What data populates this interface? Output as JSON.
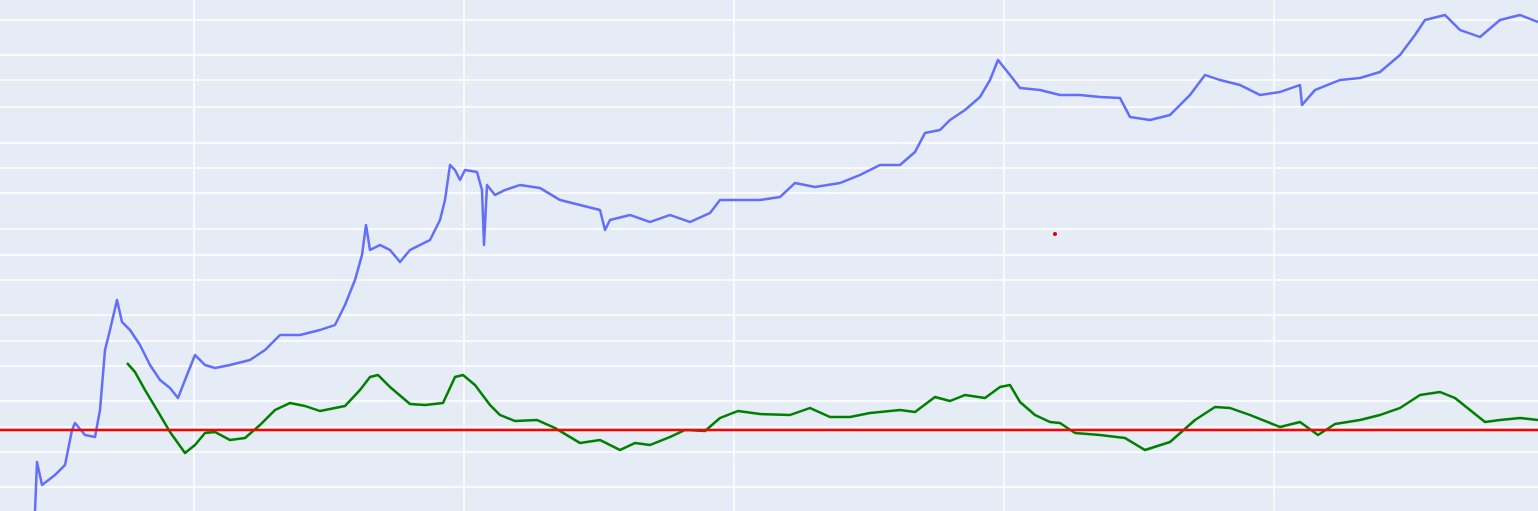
{
  "chart_data": {
    "type": "line",
    "xlim": [
      0,
      1538
    ],
    "ylim": [
      0,
      511
    ],
    "xticks": [
      194,
      464,
      734,
      1004,
      1274
    ],
    "yticks": [
      24,
      59,
      84,
      110,
      145,
      170,
      196,
      231,
      256,
      282,
      318,
      343,
      368,
      404,
      431,
      456,
      491
    ],
    "grid": true,
    "background": "#e5ecf6",
    "series": [
      {
        "color": "#636efa",
        "x": [
          35,
          37,
          42,
          55,
          65,
          72,
          75,
          85,
          95,
          100,
          105,
          110,
          117,
          122,
          130,
          140,
          150,
          160,
          170,
          178,
          185,
          195,
          205,
          215,
          230,
          250,
          265,
          280,
          300,
          320,
          335,
          345,
          355,
          362,
          366,
          370,
          380,
          390,
          400,
          410,
          430,
          440,
          445,
          450,
          455,
          460,
          465,
          477,
          482,
          484,
          487,
          495,
          505,
          520,
          540,
          560,
          580,
          600,
          605,
          610,
          630,
          650,
          670,
          690,
          710,
          720,
          740,
          760,
          780,
          795,
          815,
          840,
          860,
          880,
          900,
          915,
          925,
          940,
          950,
          965,
          980,
          990,
          998,
          1010,
          1020,
          1040,
          1060,
          1080,
          1100,
          1120,
          1130,
          1150,
          1170,
          1190,
          1205,
          1220,
          1240,
          1260,
          1280,
          1300,
          1302,
          1315,
          1340,
          1360,
          1380,
          1400,
          1415,
          1425,
          1445,
          1460,
          1480,
          1500,
          1520,
          1538
        ],
        "values": [
          0,
          49,
          26,
          36,
          46,
          81,
          88,
          76,
          74,
          101,
          161,
          181,
          211,
          189,
          181,
          166,
          146,
          131,
          123,
          113,
          131,
          156,
          146,
          143,
          146,
          151,
          161,
          176,
          176,
          181,
          186,
          206,
          231,
          256,
          286,
          261,
          266,
          261,
          249,
          261,
          271,
          291,
          311,
          346,
          341,
          331,
          341,
          339,
          321,
          266,
          326,
          316,
          321,
          326,
          323,
          311,
          306,
          301,
          281,
          291,
          296,
          289,
          296,
          289,
          298,
          311,
          311,
          311,
          314,
          328,
          324,
          328,
          336,
          346,
          346,
          359,
          378,
          381,
          391,
          401,
          414,
          431,
          451,
          436,
          423,
          421,
          416,
          416,
          414,
          413,
          394,
          391,
          396,
          416,
          436,
          431,
          426,
          416,
          419,
          426,
          406,
          421,
          431,
          433,
          439,
          456,
          476,
          491,
          496,
          481,
          474,
          491,
          496,
          489
        ]
      },
      {
        "color": "#008000",
        "x": [
          127,
          135,
          145,
          160,
          170,
          185,
          195,
          205,
          215,
          230,
          245,
          260,
          275,
          290,
          305,
          320,
          345,
          360,
          370,
          378,
          390,
          410,
          425,
          443,
          455,
          463,
          475,
          490,
          500,
          515,
          537,
          555,
          580,
          600,
          620,
          635,
          650,
          670,
          685,
          705,
          720,
          738,
          760,
          790,
          810,
          830,
          850,
          870,
          900,
          915,
          935,
          950,
          965,
          985,
          1000,
          1010,
          1020,
          1035,
          1050,
          1060,
          1075,
          1100,
          1125,
          1145,
          1170,
          1195,
          1215,
          1230,
          1250,
          1280,
          1300,
          1318,
          1335,
          1360,
          1380,
          1400,
          1420,
          1440,
          1455,
          1470,
          1485,
          1500,
          1520,
          1538
        ],
        "values": [
          148,
          139,
          121,
          96,
          79,
          58,
          66,
          78,
          79,
          71,
          73,
          86,
          101,
          108,
          105,
          100,
          105,
          121,
          134,
          136,
          124,
          107,
          106,
          108,
          134,
          136,
          126,
          106,
          96,
          90,
          91,
          83,
          68,
          71,
          61,
          68,
          66,
          74,
          81,
          80,
          93,
          100,
          97,
          96,
          103,
          94,
          94,
          98,
          101,
          99,
          114,
          110,
          116,
          113,
          124,
          126,
          109,
          96,
          89,
          88,
          78,
          76,
          73,
          61,
          69,
          91,
          104,
          103,
          96,
          84,
          89,
          76,
          87,
          91,
          96,
          103,
          116,
          119,
          113,
          101,
          89,
          91,
          93,
          91
        ]
      }
    ],
    "hlines": [
      {
        "value": 81,
        "color": "#ff0000"
      }
    ],
    "points": [
      {
        "x": 1055,
        "y": 277,
        "color": "#e00000"
      }
    ]
  }
}
